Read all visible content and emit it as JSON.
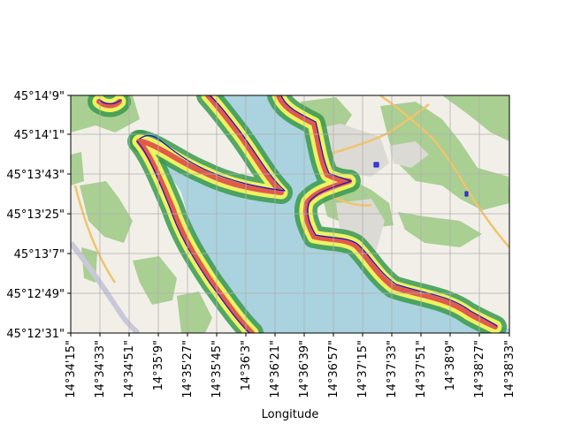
{
  "colors": {
    "water": "#aad3df",
    "land": "#f2efe9",
    "vegetation": "#a9cf92",
    "built_up": "#dcdad4",
    "road_major": "#f0c46c",
    "road_motorway": "#c8c8d8",
    "grid": "#b0b0b0",
    "band_green": "#3a9a4c",
    "band_yellow": "#eef35f",
    "band_red": "#e15a4a",
    "shoreline": "#1b14c8"
  },
  "chart_data": {
    "type": "map",
    "title": "",
    "xlabel": "Longitude",
    "ylabel": "",
    "grid": true,
    "xticks": [
      "14°34'15\"",
      "14°34'33\"",
      "14°34'51\"",
      "14°35'9\"",
      "14°35'27\"",
      "14°35'45\"",
      "14°36'3\"",
      "14°36'21\"",
      "14°36'39\"",
      "14°36'57\"",
      "14°37'15\"",
      "14°37'33\"",
      "14°37'51\"",
      "14°38'9\"",
      "14°38'27\"",
      "14°38'33\""
    ],
    "yticks": [
      "45°12'31\"",
      "45°12'49\"",
      "45°13'7\"",
      "45°13'25\"",
      "45°13'43\"",
      "45°14'1\"",
      "45°14'9\""
    ],
    "layers": [
      "basemap",
      "buffer-green",
      "buffer-yellow",
      "buffer-red",
      "shoreline"
    ]
  }
}
